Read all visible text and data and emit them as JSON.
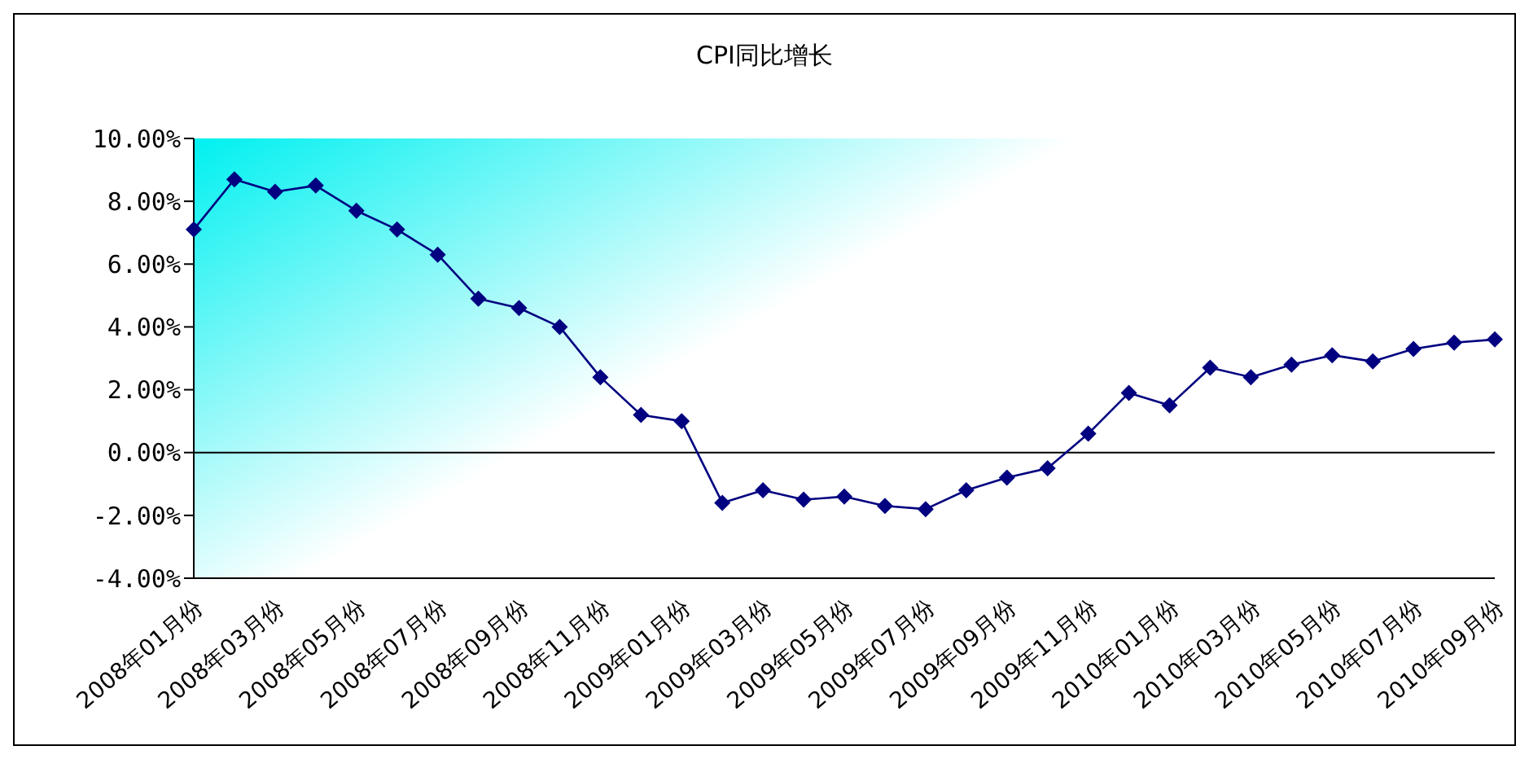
{
  "chart_data": {
    "type": "line",
    "title": "CPI同比增长",
    "categories": [
      "2008年01月份",
      null,
      "2008年03月份",
      null,
      "2008年05月份",
      null,
      "2008年07月份",
      null,
      "2008年09月份",
      null,
      "2008年11月份",
      null,
      "2009年01月份",
      null,
      "2009年03月份",
      null,
      "2009年05月份",
      null,
      "2009年07月份",
      null,
      "2009年09月份",
      null,
      "2009年11月份",
      null,
      "2010年01月份",
      null,
      "2010年03月份",
      null,
      "2010年05月份",
      null,
      "2010年07月份",
      null,
      "2010年09月份"
    ],
    "series": [
      {
        "color": "#000080",
        "values": [
          7.1,
          8.7,
          8.3,
          8.5,
          7.7,
          7.1,
          6.3,
          4.9,
          4.6,
          4.0,
          2.4,
          1.2,
          1.0,
          -1.6,
          -1.2,
          -1.5,
          -1.4,
          -1.7,
          -1.8,
          -1.2,
          -0.8,
          -0.5,
          0.6,
          1.9,
          1.5,
          2.7,
          2.4,
          2.8,
          3.1,
          2.9,
          3.3,
          3.5,
          3.6
        ]
      }
    ],
    "ylim": [
      -4,
      10
    ],
    "yticks": [
      {
        "value": -4,
        "label": "-4.00%"
      },
      {
        "value": -2,
        "label": "-2.00%"
      },
      {
        "value": 0,
        "label": "0.00%"
      },
      {
        "value": 2,
        "label": "2.00%"
      },
      {
        "value": 4,
        "label": "4.00%"
      },
      {
        "value": 6,
        "label": "6.00%"
      },
      {
        "value": 8,
        "label": "8.00%"
      },
      {
        "value": 10,
        "label": "10.00%"
      }
    ],
    "ref_lines": [
      {
        "axis": "y",
        "value": 0,
        "color": "#000000"
      }
    ],
    "marker": "diamond",
    "line_style": "solid"
  }
}
